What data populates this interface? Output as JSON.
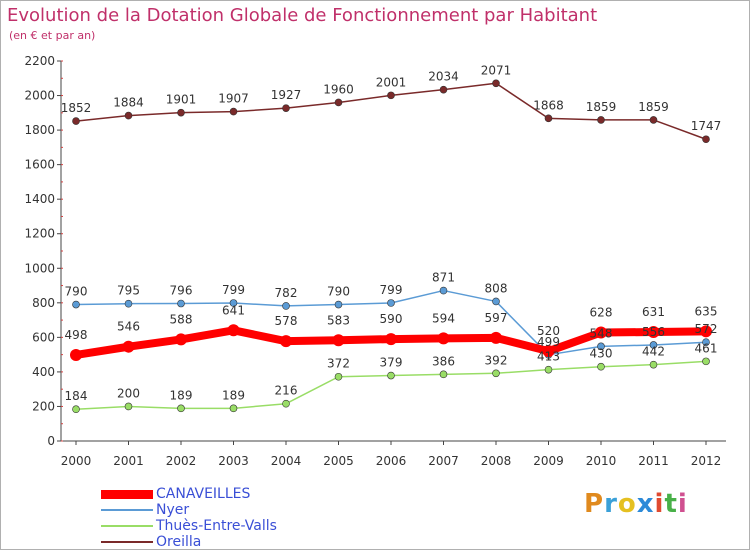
{
  "title": "Evolution de la Dotation Globale de Fonctionnement par Habitant",
  "subtitle": "(en € et par an)",
  "logo": [
    "P",
    "r",
    "o",
    "x",
    "i",
    "t",
    "i"
  ],
  "chart_data": {
    "type": "line",
    "title": "Evolution de la Dotation Globale de Fonctionnement par Habitant",
    "ylabel": "(en € et par an)",
    "xlabel": "",
    "ylim": [
      0,
      2200
    ],
    "yticks": [
      0,
      200,
      400,
      600,
      800,
      1000,
      1200,
      1400,
      1600,
      1800,
      2000,
      2200
    ],
    "grid": false,
    "legend": "bottom-left",
    "categories": [
      "2000",
      "2001",
      "2002",
      "2003",
      "2004",
      "2005",
      "2006",
      "2007",
      "2008",
      "2009",
      "2010",
      "2011",
      "2012"
    ],
    "series": [
      {
        "name": "CANAVEILLES",
        "color": "#ff0000",
        "labels": true,
        "values": [
          498,
          546,
          588,
          641,
          578,
          583,
          590,
          594,
          597,
          520,
          628,
          631,
          635
        ]
      },
      {
        "name": "Nyer",
        "color": "#5b9bd5",
        "labels": true,
        "values": [
          790,
          795,
          796,
          799,
          782,
          790,
          799,
          871,
          808,
          499,
          548,
          556,
          572
        ]
      },
      {
        "name": "Thuès-Entre-Valls",
        "color": "#99dd66",
        "labels": true,
        "values": [
          184,
          200,
          189,
          189,
          216,
          372,
          379,
          386,
          392,
          413,
          430,
          442,
          461
        ]
      },
      {
        "name": "Oreilla",
        "color": "#7a2a2a",
        "labels": true,
        "values": [
          1852,
          1884,
          1901,
          1907,
          1927,
          1960,
          2001,
          2034,
          2071,
          1868,
          1859,
          1859,
          1747
        ]
      }
    ]
  }
}
